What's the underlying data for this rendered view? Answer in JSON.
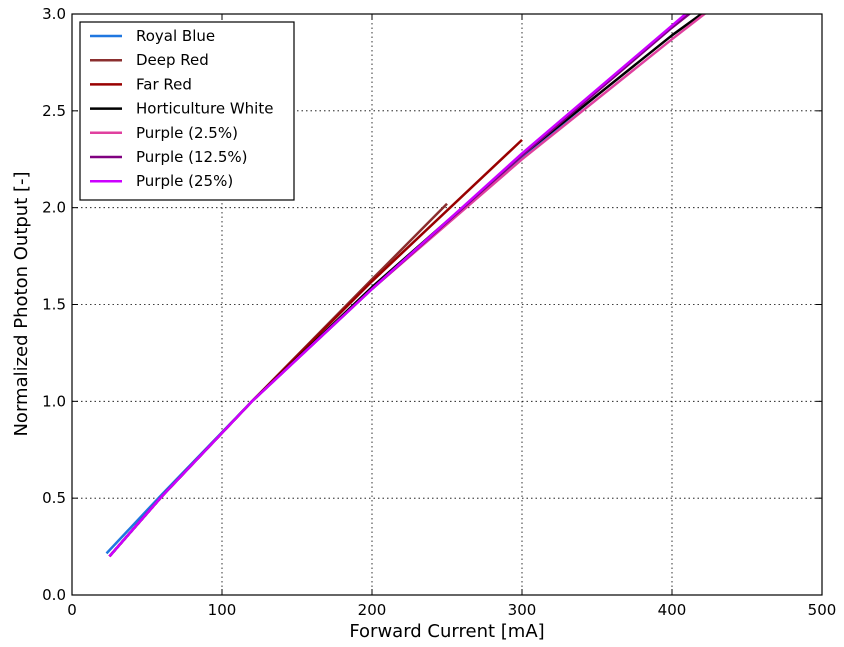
{
  "chart_data": {
    "type": "line",
    "xlabel": "Forward Current [mA]",
    "ylabel": "Normalized Photon Output [-]",
    "xlim": [
      0,
      500
    ],
    "ylim": [
      0,
      3.0
    ],
    "xticks": [
      0,
      100,
      200,
      300,
      400,
      500
    ],
    "yticks": [
      0.0,
      0.5,
      1.0,
      1.5,
      2.0,
      2.5,
      3.0
    ],
    "xtick_labels": [
      "0",
      "100",
      "200",
      "300",
      "400",
      "500"
    ],
    "ytick_labels": [
      "0.0",
      "0.5",
      "1.0",
      "1.5",
      "2.0",
      "2.5",
      "3.0"
    ],
    "grid": true,
    "legend_position": "top-left",
    "series": [
      {
        "name": "Royal Blue",
        "color": "#1f77e0",
        "x": [
          23,
          60,
          120,
          200,
          300,
          350
        ],
        "y": [
          0.215,
          0.52,
          1.0,
          1.58,
          2.26,
          2.58
        ]
      },
      {
        "name": "Deep Red",
        "color": "#8b2f2f",
        "x": [
          25,
          60,
          120,
          200,
          250
        ],
        "y": [
          0.2,
          0.51,
          1.0,
          1.63,
          2.02
        ]
      },
      {
        "name": "Far Red",
        "color": "#990000",
        "x": [
          25,
          60,
          120,
          200,
          300
        ],
        "y": [
          0.2,
          0.51,
          1.0,
          1.62,
          2.35
        ]
      },
      {
        "name": "Horticulture White",
        "color": "#000000",
        "x": [
          25,
          60,
          120,
          200,
          300,
          400,
          425
        ],
        "y": [
          0.2,
          0.51,
          1.0,
          1.59,
          2.27,
          2.89,
          3.03
        ]
      },
      {
        "name": "Purple (2.5%)",
        "color": "#e0409f",
        "x": [
          25,
          60,
          120,
          200,
          300,
          400,
          425
        ],
        "y": [
          0.2,
          0.51,
          1.0,
          1.58,
          2.25,
          2.87,
          3.02
        ]
      },
      {
        "name": "Purple (12.5%)",
        "color": "#800080",
        "x": [
          25,
          60,
          120,
          200,
          300,
          400,
          418
        ],
        "y": [
          0.2,
          0.51,
          1.0,
          1.58,
          2.27,
          2.93,
          3.04
        ]
      },
      {
        "name": "Purple (25%)",
        "color": "#cc00ff",
        "x": [
          25,
          60,
          120,
          200,
          300,
          400,
          415
        ],
        "y": [
          0.2,
          0.51,
          1.0,
          1.58,
          2.28,
          2.94,
          3.04
        ]
      }
    ]
  }
}
